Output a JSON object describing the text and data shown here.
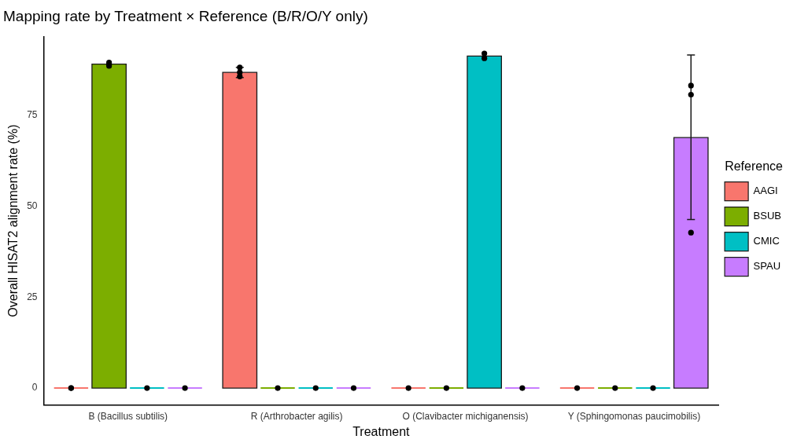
{
  "chart_data": {
    "type": "bar",
    "title": "Mapping rate by Treatment × Reference (B/R/O/Y only)",
    "xlabel": "Treatment",
    "ylabel": "Overall HISAT2 alignment rate (%)",
    "legend_title": "Reference",
    "legend": "right",
    "grid": false,
    "categories": [
      "B (Bacillus subtilis)",
      "R (Arthrobacter agilis)",
      "O (Clavibacter michiganensis)",
      "Y (Sphingomonas paucimobilis)"
    ],
    "ylim": [
      -4.6,
      96.5
    ],
    "yticks": [
      0,
      25,
      50,
      75
    ],
    "series": [
      {
        "name": "AAGI",
        "color": "#f8766d",
        "values": [
          0,
          86.7,
          0,
          0
        ],
        "errors": [
          null,
          [
            85.3,
            88.1
          ],
          null,
          null
        ]
      },
      {
        "name": "BSUB",
        "color": "#7cae00",
        "values": [
          89.0,
          0,
          0,
          0
        ]
      },
      {
        "name": "CMIC",
        "color": "#00bfc4",
        "values": [
          0,
          0,
          91.2,
          0
        ]
      },
      {
        "name": "SPAU",
        "color": "#c77cff",
        "values": [
          0,
          0,
          0,
          68.8
        ],
        "errors": [
          null,
          null,
          null,
          [
            46.3,
            91.5
          ]
        ]
      },
      {
        "type": "scatter",
        "color": "#000000",
        "marker": "circle",
        "x": [
          "B (Bacillus subtilis)",
          "B (Bacillus subtilis)",
          "R (Arthrobacter agilis)",
          "R (Arthrobacter agilis)",
          "R (Arthrobacter agilis)",
          "O (Clavibacter michiganensis)",
          "Y (Sphingomonas paucimobilis)"
        ],
        "values": [
          0,
          0,
          88.1,
          86.7,
          85.6,
          0,
          0
        ]
      },
      {
        "type": "scatter",
        "color": "#000000",
        "marker": "circle",
        "x": [
          "B (Bacillus subtilis)",
          "B (Bacillus subtilis)",
          "B (Bacillus subtilis)",
          "R (Arthrobacter agilis)",
          "O (Clavibacter michiganensis)",
          "Y (Sphingomonas paucimobilis)"
        ],
        "values": [
          89.4,
          88.9,
          88.5,
          0,
          0,
          0
        ]
      },
      {
        "type": "scatter",
        "color": "#000000",
        "marker": "circle",
        "x": [
          "B (Bacillus subtilis)",
          "R (Arthrobacter agilis)",
          "O (Clavibacter michiganensis)",
          "O (Clavibacter michiganensis)",
          "Y (Sphingomonas paucimobilis)"
        ],
        "values": [
          0,
          0,
          91.9,
          90.6,
          0
        ]
      },
      {
        "type": "scatter",
        "color": "#000000",
        "marker": "circle",
        "x": [
          "B (Bacillus subtilis)",
          "R (Arthrobacter agilis)",
          "O (Clavibacter michiganensis)",
          "Y (Sphingomonas paucimobilis)",
          "Y (Sphingomonas paucimobilis)",
          "Y (Sphingomonas paucimobilis)"
        ],
        "values": [
          0,
          0,
          0,
          83.1,
          80.6,
          42.7
        ]
      }
    ]
  }
}
